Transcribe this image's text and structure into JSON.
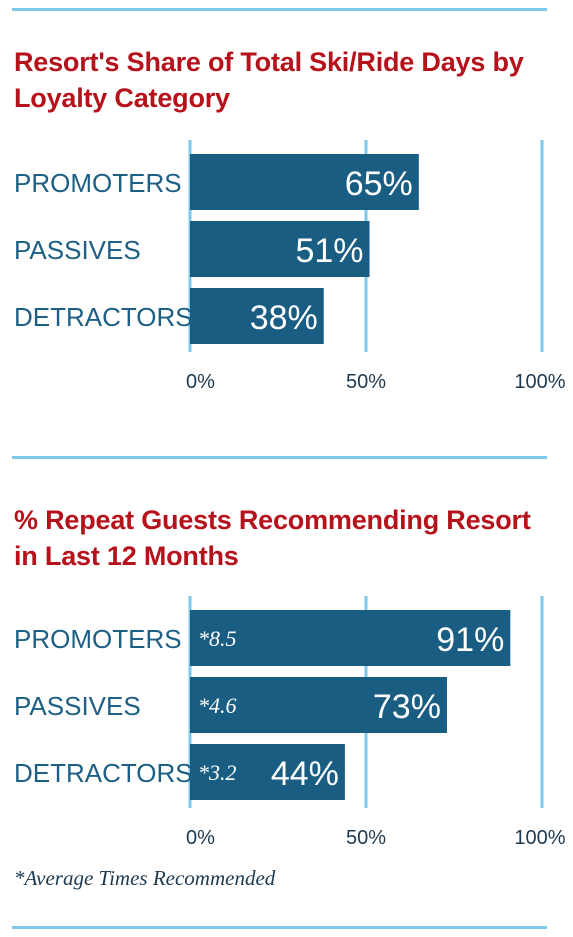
{
  "colors": {
    "bar": "#1a5d82",
    "grid": "#7ec8ea",
    "title": "#b5121b",
    "label": "#1e5f85"
  },
  "chart_data": [
    {
      "type": "bar",
      "orientation": "horizontal",
      "title": "Resort's Share of Total Ski/Ride Days by Loyalty Category",
      "categories": [
        "PROMOTERS",
        "PASSIVES",
        "DETRACTORS"
      ],
      "values": [
        65,
        51,
        38
      ],
      "value_labels": [
        "65%",
        "51%",
        "38%"
      ],
      "xlim": [
        0,
        100
      ],
      "xticks": [
        "0%",
        "50%",
        "100%"
      ],
      "grid": true
    },
    {
      "type": "bar",
      "orientation": "horizontal",
      "title": "% Repeat Guests Recommending Resort in Last 12 Months",
      "categories": [
        "PROMOTERS",
        "PASSIVES",
        "DETRACTORS"
      ],
      "values": [
        91,
        73,
        44
      ],
      "value_labels": [
        "91%",
        "73%",
        "44%"
      ],
      "bar_notes": [
        "*8.5",
        "*4.6",
        "*3.2"
      ],
      "xlim": [
        0,
        100
      ],
      "xticks": [
        "0%",
        "50%",
        "100%"
      ],
      "grid": true,
      "footnote": "*Average Times Recommended"
    }
  ]
}
